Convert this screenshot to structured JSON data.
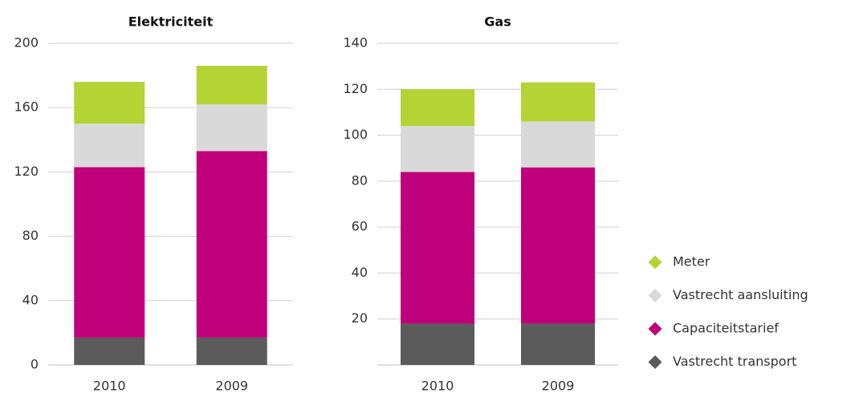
{
  "chart_data": [
    {
      "type": "bar",
      "stacked": true,
      "title": "Elektriciteit",
      "categories": [
        "2010",
        "2009"
      ],
      "series": [
        {
          "name": "Vastrecht transport",
          "color": "#5b5b5b",
          "values": [
            17,
            17
          ]
        },
        {
          "name": "Capaciteitstarief",
          "color": "#c0007a",
          "values": [
            106,
            116
          ]
        },
        {
          "name": "Vastrecht aansluiting",
          "color": "#d9d9d9",
          "values": [
            27,
            29
          ]
        },
        {
          "name": "Meter",
          "color": "#b5d334",
          "values": [
            26,
            24
          ]
        }
      ],
      "ylim": [
        0,
        200
      ],
      "yticks": [
        0,
        40,
        80,
        120,
        160,
        200
      ],
      "grid": true
    },
    {
      "type": "bar",
      "stacked": true,
      "title": "Gas",
      "categories": [
        "2010",
        "2009"
      ],
      "series": [
        {
          "name": "Vastrecht transport",
          "color": "#5b5b5b",
          "values": [
            18,
            18
          ]
        },
        {
          "name": "Capaciteitstarief",
          "color": "#c0007a",
          "values": [
            66,
            68
          ]
        },
        {
          "name": "Vastrecht aansluiting",
          "color": "#d9d9d9",
          "values": [
            20,
            20
          ]
        },
        {
          "name": "Meter",
          "color": "#b5d334",
          "values": [
            16,
            17
          ]
        }
      ],
      "ylim": [
        0,
        140
      ],
      "yticks": [
        20,
        40,
        60,
        80,
        100,
        120,
        140
      ],
      "grid": true,
      "legend": "right"
    }
  ]
}
